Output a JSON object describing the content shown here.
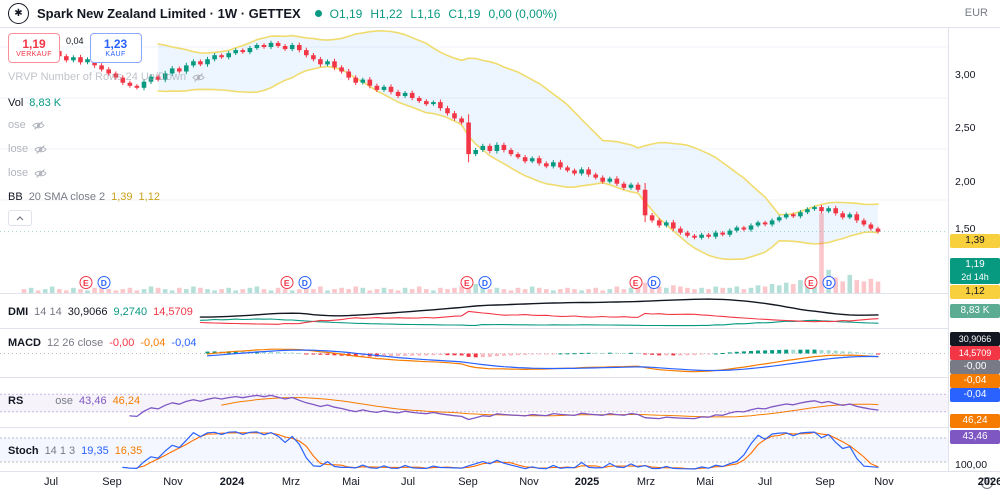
{
  "header": {
    "symbol_title": "Spark New Zealand Limited · 1W · GETTEX",
    "ohlc_values": [
      "O1,19",
      "H1,22",
      "L1,16",
      "C1,19",
      "0,00 (0,00%)"
    ],
    "currency": "EUR"
  },
  "trade_buttons": {
    "sell_price": "1,19",
    "sell_label": "VERKAUF",
    "spread": "0,04",
    "buy_price": "1,23",
    "buy_label": "KAUF"
  },
  "legends": {
    "vrvp": "VRVP Number of Rows 24 Up/Down",
    "volume": {
      "title": "Vol",
      "value": "8,83 K"
    },
    "hidden_rows": [
      "ose",
      "lose",
      "lose"
    ],
    "bb": {
      "title": "BB",
      "params": "20 SMA close 2",
      "upper": "1,39",
      "lower": "1,12"
    },
    "dmi": {
      "title": "DMI",
      "params": "14 14",
      "adx": "30,9066",
      "plus_di": "9,2740",
      "minus_di": "14,5709"
    },
    "macd": {
      "title": "MACD",
      "params": "12 26 close",
      "hist": "-0,00",
      "macd": "-0,04",
      "signal": "-0,04"
    },
    "rsi": {
      "title": "RS",
      "params": "ose",
      "value": "43,46",
      "ma": "46,24"
    },
    "stoch": {
      "title": "Stoch",
      "params": "14 1 3",
      "k": "19,35",
      "d": "16,35"
    }
  },
  "price_axis": {
    "ticks": [
      "3,00",
      "2,50",
      "2,00",
      "1,50"
    ],
    "stoch_tick": "100,00",
    "tags": {
      "bb_upper": "1,39",
      "last_price": "1,19",
      "countdown": "2d 14h",
      "bb_lower": "1,12",
      "volume": "8,83 K",
      "adx": "30,9066",
      "minus_di": "14,5709",
      "macd_hist": "-0,00",
      "macd_line": "-0,04",
      "macd_signal": "-0,04",
      "rsi_ma": "46,24",
      "rsi": "43,46",
      "stoch_k": "19,35"
    }
  },
  "time_axis": {
    "labels": [
      {
        "label": "Jul",
        "x": 0.051
      },
      {
        "label": "Sep",
        "x": 0.112
      },
      {
        "label": "Nov",
        "x": 0.173
      },
      {
        "label": "2024",
        "x": 0.232
      },
      {
        "label": "Mrz",
        "x": 0.291
      },
      {
        "label": "Mai",
        "x": 0.351
      },
      {
        "label": "Jul",
        "x": 0.408
      },
      {
        "label": "Sep",
        "x": 0.468
      },
      {
        "label": "Nov",
        "x": 0.529
      },
      {
        "label": "2025",
        "x": 0.587
      },
      {
        "label": "Mrz",
        "x": 0.646
      },
      {
        "label": "Mai",
        "x": 0.705
      },
      {
        "label": "Jul",
        "x": 0.765
      },
      {
        "label": "Sep",
        "x": 0.825
      },
      {
        "label": "Nov",
        "x": 0.884
      },
      {
        "label": "2026",
        "x": 0.99
      }
    ]
  },
  "events": {
    "e_label": "E",
    "d_label": "D",
    "positions": [
      0.1,
      0.312,
      0.502,
      0.68,
      0.865
    ]
  },
  "chart_data": {
    "type": "candlestick",
    "title": "Spark New Zealand Limited",
    "interval": "1W",
    "exchange": "GETTEX",
    "currency": "EUR",
    "price_ticks": [
      3.0,
      2.5,
      2.0,
      1.5
    ],
    "ohlc_current": {
      "open": 1.19,
      "high": 1.22,
      "low": 1.16,
      "close": 1.19,
      "change": 0.0,
      "change_pct": 0.0
    },
    "bollinger": {
      "length": 20,
      "stddev": 2,
      "upper_last": 1.39,
      "lower_last": 1.12
    },
    "volume_last": 8.83,
    "indicator_last": {
      "adx": 30.9066,
      "plus_di": 9.274,
      "minus_di": 14.5709,
      "macd_hist": -0.004,
      "macd": -0.04,
      "macd_signal": -0.04,
      "rsi": 43.46,
      "rsi_ma": 46.24,
      "stoch_k": 19.35,
      "stoch_d": 16.35
    },
    "closes": [
      2.9,
      2.94,
      2.89,
      2.92,
      2.96,
      2.91,
      2.87,
      2.9,
      2.85,
      2.88,
      2.82,
      2.78,
      2.74,
      2.7,
      2.65,
      2.62,
      2.6,
      2.66,
      2.71,
      2.68,
      2.74,
      2.79,
      2.76,
      2.82,
      2.86,
      2.83,
      2.88,
      2.92,
      2.9,
      2.94,
      2.97,
      2.95,
      2.99,
      3.02,
      3.0,
      3.04,
      3.01,
      2.98,
      3.02,
      2.97,
      2.92,
      2.88,
      2.83,
      2.86,
      2.8,
      2.76,
      2.7,
      2.65,
      2.68,
      2.62,
      2.58,
      2.61,
      2.56,
      2.52,
      2.55,
      2.5,
      2.47,
      2.44,
      2.46,
      2.4,
      2.35,
      2.3,
      2.26,
      1.95,
      1.99,
      2.03,
      1.98,
      2.04,
      1.99,
      1.95,
      1.92,
      1.88,
      1.91,
      1.86,
      1.83,
      1.87,
      1.82,
      1.79,
      1.76,
      1.8,
      1.75,
      1.72,
      1.68,
      1.71,
      1.66,
      1.62,
      1.65,
      1.6,
      1.35,
      1.3,
      1.25,
      1.28,
      1.22,
      1.18,
      1.15,
      1.13,
      1.16,
      1.14,
      1.18,
      1.16,
      1.2,
      1.23,
      1.21,
      1.25,
      1.28,
      1.26,
      1.3,
      1.33,
      1.36,
      1.34,
      1.38,
      1.41,
      1.43,
      1.39,
      1.42,
      1.37,
      1.33,
      1.36,
      1.3,
      1.26,
      1.22,
      1.19
    ],
    "volumes": [
      3,
      4,
      2,
      3,
      5,
      3,
      2,
      4,
      3,
      2,
      4,
      5,
      3,
      2,
      3,
      4,
      2,
      3,
      5,
      4,
      3,
      2,
      4,
      3,
      5,
      4,
      3,
      2,
      3,
      4,
      2,
      3,
      4,
      5,
      3,
      2,
      4,
      3,
      2,
      3,
      4,
      3,
      5,
      2,
      3,
      4,
      3,
      5,
      4,
      2,
      3,
      4,
      3,
      2,
      4,
      3,
      5,
      3,
      2,
      4,
      3,
      4,
      5,
      10,
      7,
      4,
      3,
      4,
      3,
      2,
      4,
      3,
      5,
      4,
      3,
      2,
      3,
      4,
      3,
      2,
      3,
      4,
      2,
      3,
      5,
      3,
      4,
      11,
      8,
      6,
      5,
      4,
      6,
      5,
      4,
      3,
      4,
      3,
      5,
      4,
      4,
      5,
      3,
      4,
      6,
      5,
      7,
      6,
      8,
      7,
      10,
      12,
      9,
      62,
      18,
      12,
      9,
      14,
      10,
      9,
      11,
      8.8
    ]
  }
}
